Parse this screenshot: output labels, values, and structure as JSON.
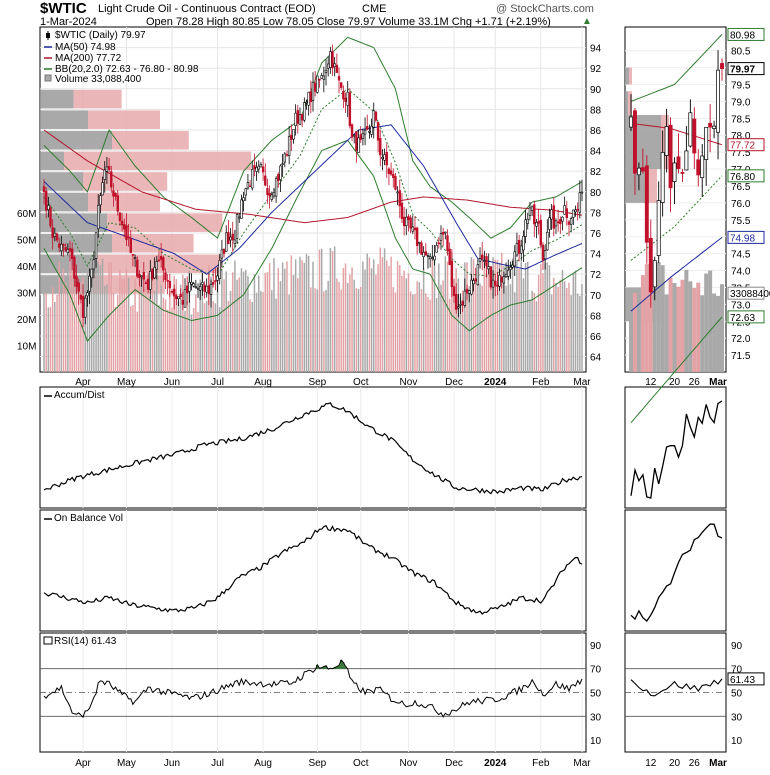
{
  "header": {
    "symbol": "$WTIC",
    "name": "Light Crude Oil - Continuous Contract (EOD)",
    "exchange": "CME",
    "watermark": "@ StockCharts.com",
    "date": "1-Mar-2024",
    "ohlc": "Open 78.28  High 80.85  Low 78.05  Close 79.97  Volume 33.1M  Chg +1.71 (+2.19%)",
    "ohlc_arrow": "▲"
  },
  "legend": [
    {
      "text": "$WTIC (Daily) 79.97",
      "color": "#000000",
      "marker": "candle"
    },
    {
      "text": "MA(50) 74.98",
      "color": "#1f2a9e",
      "marker": "line"
    },
    {
      "text": "MA(200) 77.72",
      "color": "#b3162b",
      "marker": "line"
    },
    {
      "text": "BB(20,2.0) 72.63 - 76.80 - 80.98",
      "color": "#2e7d2e",
      "marker": "line"
    },
    {
      "text": "Volume 33,088,400",
      "color": "#888888",
      "marker": "box"
    }
  ],
  "panels": {
    "accum_dist": "Accum/Dist",
    "obv": "On Balance Vol",
    "rsi": "RSI(14) 61.43"
  },
  "side_labels": {
    "close": "79.97",
    "bb_upper": "80.98",
    "ma200": "77.72",
    "bb_mid": "76.80",
    "ma50": "74.98",
    "volume": "33088400",
    "bb_lower": "72.63",
    "rsi": "61.43"
  },
  "colors": {
    "up_candle": "#000000",
    "down_candle": "#c0102a",
    "ma50": "#1f2a9e",
    "ma200": "#b3162b",
    "bollinger": "#2e7d2e",
    "volume_up": "#a9a9a9",
    "volume_down": "#e3a3a6",
    "vbp_up": "#9a9a9a",
    "vbp_down": "#e8a9ab"
  },
  "chart_data": {
    "type": "candlestick",
    "main_price_axis": {
      "ylim": [
        62.5,
        96
      ],
      "ticks": [
        64,
        66,
        68,
        70,
        72,
        74,
        76,
        78,
        80,
        82,
        84,
        86,
        88,
        90,
        92,
        94
      ]
    },
    "volume_axis": {
      "ylim": [
        0,
        130
      ],
      "unit": "M",
      "ticks": [
        10,
        20,
        30,
        40,
        50,
        60
      ],
      "tick_labels": [
        "10M",
        "20M",
        "30M",
        "40M",
        "50M",
        "60M"
      ]
    },
    "month_labels": [
      "Apr",
      "May",
      "Jun",
      "Jul",
      "Aug",
      "Sep",
      "Oct",
      "Nov",
      "Dec",
      "2024",
      "Feb",
      "Mar"
    ],
    "month_index": [
      18,
      38,
      59,
      80,
      101,
      126,
      146,
      168,
      189,
      208,
      229,
      248
    ],
    "close_anchors": [
      [
        0,
        80.0
      ],
      [
        4,
        76.0
      ],
      [
        8,
        74.5
      ],
      [
        12,
        74.0
      ],
      [
        16,
        70.0
      ],
      [
        18,
        68.5
      ],
      [
        22,
        72.0
      ],
      [
        25,
        78.0
      ],
      [
        28,
        82.0
      ],
      [
        30,
        81.5
      ],
      [
        33,
        79.0
      ],
      [
        37,
        76.5
      ],
      [
        40,
        74.0
      ],
      [
        44,
        72.0
      ],
      [
        48,
        71.0
      ],
      [
        52,
        73.5
      ],
      [
        56,
        72.0
      ],
      [
        60,
        70.0
      ],
      [
        64,
        69.5
      ],
      [
        68,
        71.0
      ],
      [
        72,
        70.5
      ],
      [
        76,
        70.5
      ],
      [
        80,
        72.0
      ],
      [
        84,
        75.5
      ],
      [
        88,
        76.0
      ],
      [
        92,
        80.0
      ],
      [
        96,
        81.5
      ],
      [
        100,
        82.0
      ],
      [
        104,
        80.0
      ],
      [
        108,
        81.5
      ],
      [
        112,
        84.0
      ],
      [
        116,
        87.0
      ],
      [
        120,
        88.0
      ],
      [
        124,
        90.0
      ],
      [
        128,
        91.0
      ],
      [
        132,
        93.5
      ],
      [
        136,
        90.5
      ],
      [
        140,
        89.0
      ],
      [
        142,
        85.0
      ],
      [
        146,
        84.5
      ],
      [
        150,
        86.0
      ],
      [
        152,
        87.5
      ],
      [
        155,
        84.0
      ],
      [
        158,
        82.5
      ],
      [
        162,
        80.5
      ],
      [
        166,
        77.0
      ],
      [
        170,
        76.0
      ],
      [
        174,
        74.5
      ],
      [
        178,
        73.0
      ],
      [
        182,
        75.5
      ],
      [
        185,
        76.0
      ],
      [
        187,
        72.5
      ],
      [
        189,
        69.5
      ],
      [
        192,
        69.0
      ],
      [
        195,
        70.5
      ],
      [
        198,
        71.5
      ],
      [
        201,
        73.0
      ],
      [
        204,
        72.5
      ],
      [
        207,
        71.0
      ],
      [
        209,
        70.5
      ],
      [
        211,
        72.0
      ],
      [
        214,
        73.0
      ],
      [
        217,
        74.0
      ],
      [
        219,
        74.5
      ],
      [
        222,
        77.0
      ],
      [
        224,
        78.5
      ],
      [
        226,
        77.0
      ],
      [
        228,
        76.5
      ],
      [
        230,
        73.5
      ],
      [
        232,
        76.5
      ],
      [
        234,
        77.5
      ],
      [
        236,
        76.5
      ],
      [
        238,
        77.5
      ],
      [
        240,
        78.5
      ],
      [
        242,
        77.5
      ],
      [
        244,
        78.0
      ],
      [
        246,
        78.3
      ],
      [
        248,
        79.97
      ]
    ],
    "ma50_anchors": [
      [
        0,
        81.0
      ],
      [
        20,
        77.0
      ],
      [
        40,
        75.5
      ],
      [
        60,
        74.0
      ],
      [
        75,
        72.0
      ],
      [
        90,
        74.5
      ],
      [
        105,
        78.0
      ],
      [
        125,
        82.0
      ],
      [
        145,
        86.0
      ],
      [
        160,
        86.5
      ],
      [
        175,
        82.5
      ],
      [
        190,
        77.0
      ],
      [
        200,
        73.5
      ],
      [
        210,
        73.0
      ],
      [
        222,
        72.5
      ],
      [
        235,
        73.8
      ],
      [
        248,
        74.98
      ]
    ],
    "ma200_anchors": [
      [
        0,
        86.0
      ],
      [
        20,
        83.0
      ],
      [
        45,
        80.0
      ],
      [
        70,
        78.3
      ],
      [
        95,
        77.8
      ],
      [
        120,
        77.0
      ],
      [
        140,
        77.5
      ],
      [
        160,
        79.0
      ],
      [
        175,
        79.5
      ],
      [
        195,
        79.2
      ],
      [
        215,
        78.5
      ],
      [
        235,
        78.2
      ],
      [
        248,
        77.72
      ]
    ],
    "bb_upper_anchors": [
      [
        0,
        84.5
      ],
      [
        12,
        82.0
      ],
      [
        20,
        80.0
      ],
      [
        30,
        86.0
      ],
      [
        42,
        82.5
      ],
      [
        55,
        79.5
      ],
      [
        68,
        77.5
      ],
      [
        80,
        75.5
      ],
      [
        92,
        82.0
      ],
      [
        105,
        85.0
      ],
      [
        118,
        87.0
      ],
      [
        128,
        92.5
      ],
      [
        140,
        95.0
      ],
      [
        152,
        94.0
      ],
      [
        162,
        90.0
      ],
      [
        170,
        83.0
      ],
      [
        178,
        80.5
      ],
      [
        188,
        79.0
      ],
      [
        196,
        77.5
      ],
      [
        206,
        75.5
      ],
      [
        215,
        76.5
      ],
      [
        225,
        79.0
      ],
      [
        236,
        79.5
      ],
      [
        248,
        80.98
      ]
    ],
    "bb_lower_anchors": [
      [
        0,
        74.5
      ],
      [
        12,
        70.0
      ],
      [
        20,
        65.5
      ],
      [
        30,
        68.0
      ],
      [
        42,
        70.5
      ],
      [
        55,
        68.5
      ],
      [
        68,
        67.5
      ],
      [
        80,
        68.0
      ],
      [
        92,
        70.0
      ],
      [
        105,
        74.5
      ],
      [
        118,
        80.0
      ],
      [
        128,
        84.0
      ],
      [
        140,
        85.0
      ],
      [
        152,
        81.5
      ],
      [
        162,
        75.5
      ],
      [
        170,
        72.5
      ],
      [
        178,
        72.0
      ],
      [
        188,
        68.0
      ],
      [
        196,
        66.5
      ],
      [
        206,
        68.0
      ],
      [
        215,
        69.0
      ],
      [
        225,
        69.5
      ],
      [
        236,
        71.0
      ],
      [
        248,
        72.63
      ]
    ],
    "bb_mid_anchors": [
      [
        0,
        79.5
      ],
      [
        12,
        76.0
      ],
      [
        20,
        72.8
      ],
      [
        30,
        77.0
      ],
      [
        42,
        76.5
      ],
      [
        55,
        74.0
      ],
      [
        68,
        72.5
      ],
      [
        80,
        71.8
      ],
      [
        92,
        76.0
      ],
      [
        105,
        79.8
      ],
      [
        118,
        83.5
      ],
      [
        128,
        88.0
      ],
      [
        140,
        90.0
      ],
      [
        152,
        87.8
      ],
      [
        162,
        82.8
      ],
      [
        170,
        77.8
      ],
      [
        178,
        76.2
      ],
      [
        188,
        73.5
      ],
      [
        196,
        72.0
      ],
      [
        206,
        71.8
      ],
      [
        215,
        72.8
      ],
      [
        225,
        74.3
      ],
      [
        236,
        75.3
      ],
      [
        248,
        76.8
      ]
    ],
    "volume_anchors": [
      [
        0,
        33
      ],
      [
        20,
        36
      ],
      [
        40,
        30
      ],
      [
        60,
        29
      ],
      [
        80,
        33
      ],
      [
        100,
        35
      ],
      [
        120,
        37
      ],
      [
        140,
        40
      ],
      [
        160,
        38
      ],
      [
        180,
        36
      ],
      [
        200,
        37
      ],
      [
        220,
        36
      ],
      [
        248,
        33
      ]
    ],
    "volume_by_price": [
      {
        "price_low": 82,
        "price_high": 84,
        "up": 10,
        "down": 78
      },
      {
        "price_low": 80,
        "price_high": 82,
        "up": 18,
        "down": 35
      },
      {
        "price_low": 78,
        "price_high": 80,
        "up": 20,
        "down": 30
      },
      {
        "price_low": 76,
        "price_high": 78,
        "up": 28,
        "down": 48
      },
      {
        "price_low": 74,
        "price_high": 76,
        "up": 30,
        "down": 34
      },
      {
        "price_low": 72,
        "price_high": 74,
        "up": 24,
        "down": 52
      },
      {
        "price_low": 70,
        "price_high": 72,
        "up": 22,
        "down": 30
      },
      {
        "price_low": 86,
        "price_high": 88,
        "up": 20,
        "down": 30
      },
      {
        "price_low": 88,
        "price_high": 90,
        "up": 14,
        "down": 20
      },
      {
        "price_low": 84,
        "price_high": 86,
        "up": 30,
        "down": 32
      }
    ],
    "accum_dist_anchors": [
      [
        0,
        0.1
      ],
      [
        15,
        0.22
      ],
      [
        30,
        0.3
      ],
      [
        45,
        0.38
      ],
      [
        60,
        0.45
      ],
      [
        75,
        0.55
      ],
      [
        90,
        0.6
      ],
      [
        105,
        0.7
      ],
      [
        120,
        0.85
      ],
      [
        132,
        0.95
      ],
      [
        140,
        0.88
      ],
      [
        150,
        0.72
      ],
      [
        160,
        0.6
      ],
      [
        170,
        0.4
      ],
      [
        180,
        0.25
      ],
      [
        190,
        0.12
      ],
      [
        200,
        0.1
      ],
      [
        210,
        0.08
      ],
      [
        220,
        0.12
      ],
      [
        230,
        0.1
      ],
      [
        240,
        0.2
      ],
      [
        248,
        0.23
      ]
    ],
    "obv_anchors": [
      [
        0,
        0.3
      ],
      [
        10,
        0.25
      ],
      [
        20,
        0.2
      ],
      [
        30,
        0.25
      ],
      [
        40,
        0.18
      ],
      [
        50,
        0.15
      ],
      [
        60,
        0.12
      ],
      [
        70,
        0.15
      ],
      [
        80,
        0.25
      ],
      [
        90,
        0.45
      ],
      [
        100,
        0.55
      ],
      [
        110,
        0.7
      ],
      [
        120,
        0.8
      ],
      [
        128,
        0.95
      ],
      [
        140,
        0.92
      ],
      [
        150,
        0.75
      ],
      [
        160,
        0.65
      ],
      [
        170,
        0.5
      ],
      [
        180,
        0.4
      ],
      [
        190,
        0.2
      ],
      [
        200,
        0.1
      ],
      [
        210,
        0.15
      ],
      [
        220,
        0.25
      ],
      [
        230,
        0.22
      ],
      [
        240,
        0.55
      ],
      [
        245,
        0.65
      ],
      [
        248,
        0.6
      ]
    ],
    "rsi_axis": {
      "ylim": [
        0,
        100
      ],
      "ticks": [
        10,
        30,
        50,
        70,
        90
      ],
      "levels": [
        70,
        50,
        30
      ]
    },
    "rsi_anchors": [
      [
        0,
        47
      ],
      [
        8,
        54
      ],
      [
        14,
        30
      ],
      [
        20,
        33
      ],
      [
        26,
        60
      ],
      [
        30,
        57
      ],
      [
        36,
        48
      ],
      [
        42,
        42
      ],
      [
        48,
        54
      ],
      [
        56,
        50
      ],
      [
        62,
        48
      ],
      [
        68,
        45
      ],
      [
        76,
        49
      ],
      [
        84,
        55
      ],
      [
        90,
        59
      ],
      [
        98,
        58
      ],
      [
        106,
        57
      ],
      [
        114,
        58
      ],
      [
        120,
        65
      ],
      [
        126,
        72
      ],
      [
        132,
        70
      ],
      [
        138,
        76
      ],
      [
        142,
        58
      ],
      [
        148,
        50
      ],
      [
        154,
        53
      ],
      [
        160,
        45
      ],
      [
        166,
        40
      ],
      [
        172,
        42
      ],
      [
        178,
        38
      ],
      [
        184,
        32
      ],
      [
        190,
        36
      ],
      [
        196,
        42
      ],
      [
        202,
        43
      ],
      [
        208,
        44
      ],
      [
        214,
        48
      ],
      [
        220,
        53
      ],
      [
        226,
        60
      ],
      [
        230,
        48
      ],
      [
        236,
        57
      ],
      [
        242,
        53
      ],
      [
        248,
        61.43
      ]
    ],
    "zoom_axis": {
      "ylim": [
        71.0,
        81.2
      ],
      "ticks": [
        71.5,
        72.0,
        72.5,
        73.0,
        73.5,
        74.0,
        74.5,
        75.0,
        75.5,
        76.0,
        76.5,
        77.0,
        77.5,
        78.0,
        78.5,
        79.0,
        79.5,
        80.0,
        80.5
      ],
      "tick_labels": [
        "71.5",
        "72.0",
        "72.5",
        "73.0",
        "73.5",
        "74.0",
        "74.5",
        "75.0",
        "75.5",
        "76.0",
        "76.5",
        "77.0",
        "77.5",
        "78.0",
        "78.5",
        "79.0",
        "79.5",
        "80.0",
        "80.5"
      ]
    },
    "zoom_x_labels": [
      "12",
      "20",
      "26",
      "Mar"
    ],
    "zoom_x_index": [
      5,
      11,
      16,
      22
    ]
  }
}
